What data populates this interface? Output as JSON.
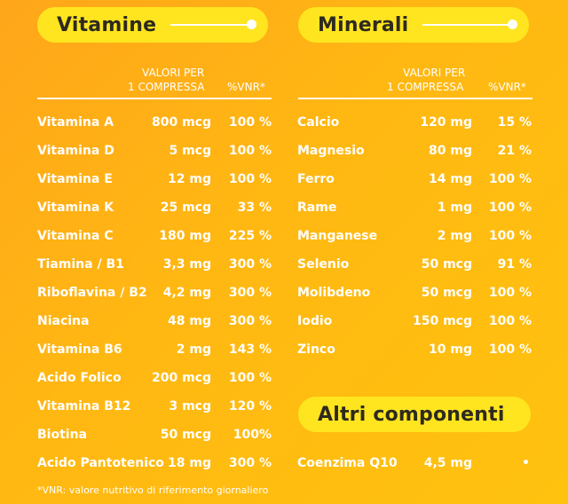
{
  "vitamine": {
    "title": "Vitamine",
    "header_value": [
      "VALORI PER",
      "1 COMPRESSA"
    ],
    "header_vnr": "%VNR*",
    "rows": [
      {
        "name": "Vitamina A",
        "value": "800 mcg",
        "vnr": "100 %"
      },
      {
        "name": "Vitamina D",
        "value": "5 mcg",
        "vnr": "100 %"
      },
      {
        "name": "Vitamina E",
        "value": "12 mg",
        "vnr": "100 %"
      },
      {
        "name": "Vitamina K",
        "value": "25 mcg",
        "vnr": "33 %"
      },
      {
        "name": "Vitamina C",
        "value": "180 mg",
        "vnr": "225 %"
      },
      {
        "name": "Tiamina / B1",
        "value": "3,3 mg",
        "vnr": "300 %"
      },
      {
        "name": "Riboflavina / B2",
        "value": "4,2 mg",
        "vnr": "300 %"
      },
      {
        "name": "Niacina",
        "value": "48 mg",
        "vnr": "300 %"
      },
      {
        "name": "Vitamina B6",
        "value": "2 mg",
        "vnr": "143 %"
      },
      {
        "name": "Acido Folico",
        "value": "200 mcg",
        "vnr": "100 %"
      },
      {
        "name": "Vitamina B12",
        "value": "3 mcg",
        "vnr": "120 %"
      },
      {
        "name": "Biotina",
        "value": "50 mcg",
        "vnr": "100%"
      },
      {
        "name": "Acido Pantotenico",
        "value": "18 mg",
        "vnr": "300 %"
      }
    ]
  },
  "minerali": {
    "title": "Minerali",
    "header_value": [
      "VALORI PER",
      "1 COMPRESSA"
    ],
    "header_vnr": "%VNR*",
    "rows": [
      {
        "name": "Calcio",
        "value": "120 mg",
        "vnr": "15 %"
      },
      {
        "name": "Magnesio",
        "value": "80 mg",
        "vnr": "21 %"
      },
      {
        "name": "Ferro",
        "value": "14 mg",
        "vnr": "100 %"
      },
      {
        "name": "Rame",
        "value": "1 mg",
        "vnr": "100 %"
      },
      {
        "name": "Manganese",
        "value": "2 mg",
        "vnr": "100 %"
      },
      {
        "name": "Selenio",
        "value": "50 mcg",
        "vnr": "91 %"
      },
      {
        "name": "Molibdeno",
        "value": "50 mcg",
        "vnr": "100 %"
      },
      {
        "name": "Iodio",
        "value": "150 mcg",
        "vnr": "100 %"
      },
      {
        "name": "Zinco",
        "value": "10 mg",
        "vnr": "100 %"
      }
    ]
  },
  "altri": {
    "title": "Altri componenti",
    "rows": [
      {
        "name": "Coenzima Q10",
        "value": "4,5 mg",
        "vnr": "•"
      }
    ]
  },
  "footnote": "*VNR: valore nutritivo di riferimento giornaliero",
  "colors": {
    "pill": "#ffe51f",
    "text_dark": "#2e2a1e",
    "background": "#ffb812"
  }
}
